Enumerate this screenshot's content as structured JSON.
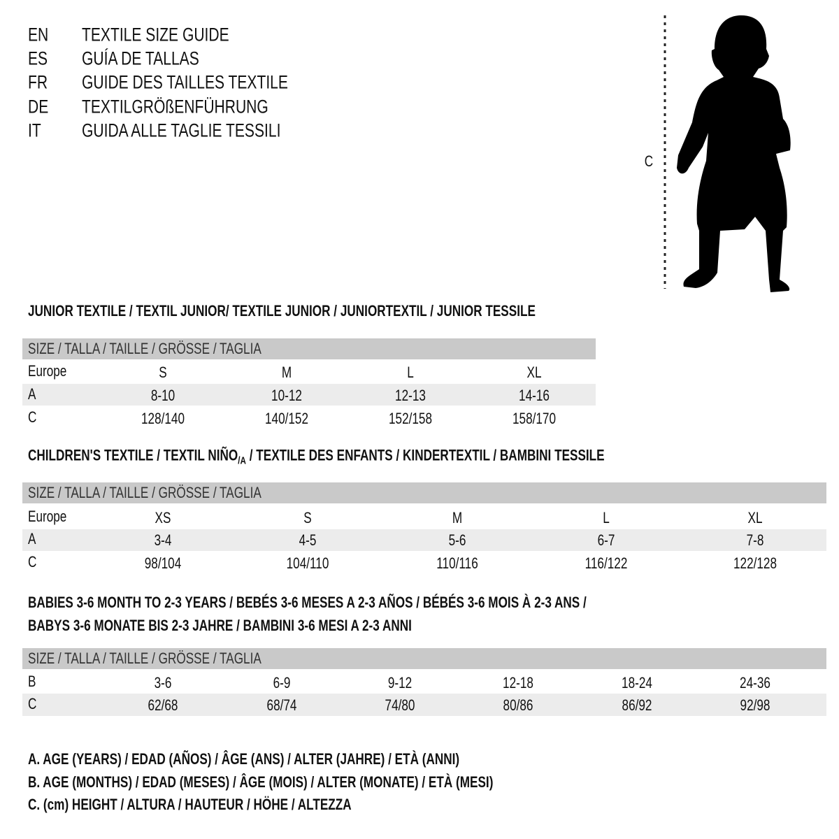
{
  "languages": [
    {
      "code": "EN",
      "title": "TEXTILE SIZE GUIDE"
    },
    {
      "code": "ES",
      "title": "GUÍA DE TALLAS"
    },
    {
      "code": "FR",
      "title": "GUIDE DES TAILLES TEXTILE"
    },
    {
      "code": "DE",
      "title": "TEXTILGRÖßENFÜHRUNG"
    },
    {
      "code": "IT",
      "title": "GUIDA ALLE TAGLIE TESSILI"
    }
  ],
  "figure": {
    "label": "C",
    "icon": "child-silhouette-with-height-line"
  },
  "colors": {
    "header_band": "#c9c9c9",
    "alt_band": "#ececec"
  },
  "size_header": "SIZE / TALLA / TAILLE / GRÖSSE / TAGLIA",
  "junior": {
    "heading": "JUNIOR TEXTILE / TEXTIL JUNIOR/ TEXTILE JUNIOR / JUNIORTEXTIL / JUNIOR TESSILE",
    "rows": [
      {
        "label": "Europe",
        "values": [
          "S",
          "M",
          "L",
          "XL"
        ]
      },
      {
        "label": "A",
        "values": [
          "8-10",
          "10-12",
          "12-13",
          "14-16"
        ]
      },
      {
        "label": "C",
        "values": [
          "128/140",
          "140/152",
          "152/158",
          "158/170"
        ]
      }
    ]
  },
  "children": {
    "heading_pre": "CHILDREN'S TEXTILE / TEXTIL NIÑO",
    "heading_sub": "/A",
    "heading_post": " / TEXTILE DES ENFANTS / KINDERTEXTIL / BAMBINI TESSILE",
    "rows": [
      {
        "label": "Europe",
        "values": [
          "XS",
          "S",
          "M",
          "L",
          "XL"
        ]
      },
      {
        "label": "A",
        "values": [
          "3-4",
          "4-5",
          "5-6",
          "6-7",
          "7-8"
        ]
      },
      {
        "label": "C",
        "values": [
          "98/104",
          "104/110",
          "110/116",
          "116/122",
          "122/128"
        ]
      }
    ]
  },
  "babies": {
    "heading_lines": [
      "BABIES 3-6 MONTH TO 2-3 YEARS / BEBÉS 3-6 MESES A 2-3 AÑOS / BÉBÉS 3-6 MOIS À 2-3 ANS /",
      "BABYS 3-6 MONATE BIS 2-3 JAHRE / BAMBINI 3-6 MESI A 2-3 ANNI"
    ],
    "rows": [
      {
        "label": "B",
        "values": [
          "3-6",
          "6-9",
          "9-12",
          "12-18",
          "18-24",
          "24-36"
        ]
      },
      {
        "label": "C",
        "values": [
          "62/68",
          "68/74",
          "74/80",
          "80/86",
          "86/92",
          "92/98"
        ]
      }
    ]
  },
  "legend": [
    "A. AGE (YEARS) / EDAD (AÑOS) / ÂGE (ANS) / ALTER (JAHRE) / ETÀ (ANNI)",
    "B. AGE (MONTHS) / EDAD (MESES) / ÂGE (MOIS) / ALTER (MONATE) / ETÀ (MESI)",
    "C. (cm) HEIGHT / ALTURA / HAUTEUR / HÖHE / ALTEZZA"
  ]
}
